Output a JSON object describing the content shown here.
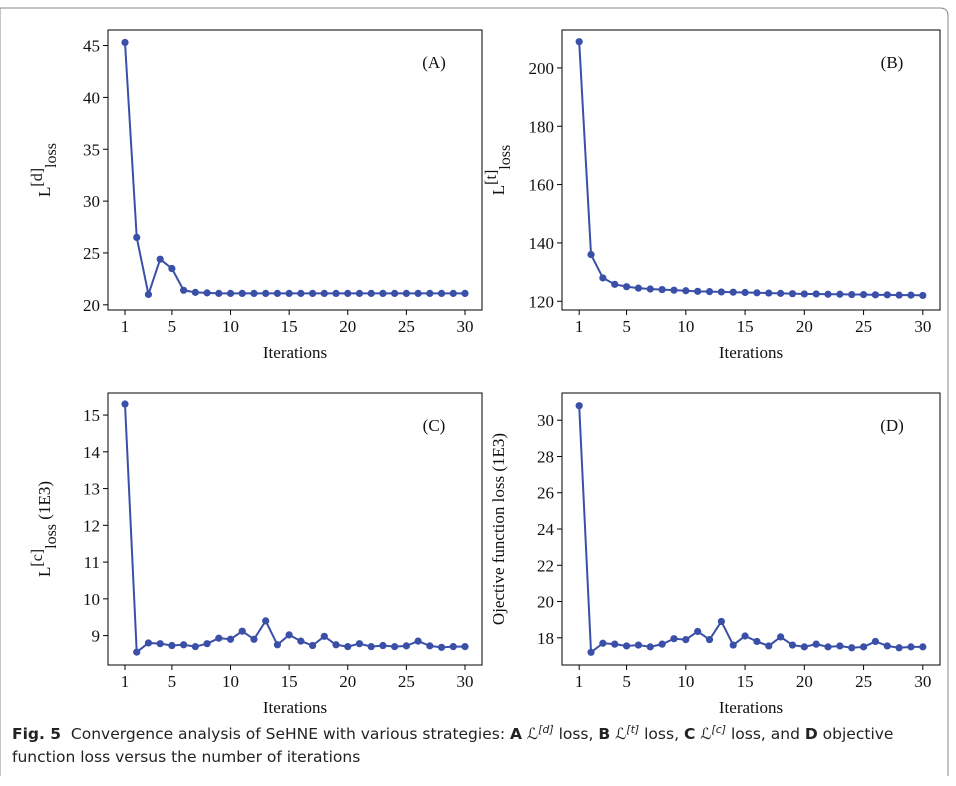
{
  "chart_data": [
    {
      "type": "line",
      "annotation": "(A)",
      "xlabel": "Iterations",
      "ylabel": {
        "base": "L",
        "sup": "[d]",
        "sub": "loss"
      },
      "x": [
        1,
        2,
        3,
        4,
        5,
        6,
        7,
        8,
        9,
        10,
        11,
        12,
        13,
        14,
        15,
        16,
        17,
        18,
        19,
        20,
        21,
        22,
        23,
        24,
        25,
        26,
        27,
        28,
        29,
        30
      ],
      "series": [
        {
          "color": "#3a4fa8",
          "values": [
            45.3,
            26.5,
            21.0,
            24.4,
            23.5,
            21.4,
            21.2,
            21.15,
            21.1,
            21.1,
            21.1,
            21.1,
            21.1,
            21.1,
            21.1,
            21.1,
            21.1,
            21.1,
            21.1,
            21.1,
            21.1,
            21.1,
            21.1,
            21.1,
            21.1,
            21.1,
            21.1,
            21.1,
            21.1,
            21.1
          ]
        }
      ],
      "xlim": [
        -0.45,
        31.45
      ],
      "xticks": [
        1,
        5,
        10,
        15,
        20,
        25,
        30
      ],
      "ylim": [
        19.5,
        46.5
      ],
      "yticks": [
        20,
        25,
        30,
        35,
        40,
        45
      ]
    },
    {
      "type": "line",
      "annotation": "(B)",
      "xlabel": "Iterations",
      "ylabel": {
        "base": "L",
        "sup": "[t]",
        "sub": "loss"
      },
      "x": [
        1,
        2,
        3,
        4,
        5,
        6,
        7,
        8,
        9,
        10,
        11,
        12,
        13,
        14,
        15,
        16,
        17,
        18,
        19,
        20,
        21,
        22,
        23,
        24,
        25,
        26,
        27,
        28,
        29,
        30
      ],
      "series": [
        {
          "color": "#3a4fa8",
          "values": [
            209,
            136,
            128,
            125.8,
            125,
            124.5,
            124.2,
            124,
            123.8,
            123.6,
            123.4,
            123.3,
            123.2,
            123.1,
            123.0,
            122.9,
            122.8,
            122.7,
            122.6,
            122.5,
            122.5,
            122.4,
            122.4,
            122.3,
            122.3,
            122.2,
            122.2,
            122.1,
            122.1,
            122.0
          ]
        }
      ],
      "xlim": [
        -0.45,
        31.45
      ],
      "xticks": [
        1,
        5,
        10,
        15,
        20,
        25,
        30
      ],
      "ylim": [
        117,
        213
      ],
      "yticks": [
        120,
        140,
        160,
        180,
        200
      ]
    },
    {
      "type": "line",
      "annotation": "(C)",
      "xlabel": "Iterations",
      "ylabel": {
        "base": "L",
        "sup": "[c]",
        "sub": "loss",
        "suffix": " (1E3)"
      },
      "x": [
        1,
        2,
        3,
        4,
        5,
        6,
        7,
        8,
        9,
        10,
        11,
        12,
        13,
        14,
        15,
        16,
        17,
        18,
        19,
        20,
        21,
        22,
        23,
        24,
        25,
        26,
        27,
        28,
        29,
        30
      ],
      "series": [
        {
          "color": "#3a4fa8",
          "values": [
            15.3,
            8.55,
            8.8,
            8.78,
            8.73,
            8.75,
            8.7,
            8.78,
            8.93,
            8.9,
            9.12,
            8.9,
            9.4,
            8.75,
            9.02,
            8.85,
            8.73,
            8.98,
            8.75,
            8.7,
            8.78,
            8.7,
            8.73,
            8.7,
            8.72,
            8.85,
            8.72,
            8.68,
            8.7,
            8.7
          ]
        }
      ],
      "xlim": [
        -0.45,
        31.45
      ],
      "xticks": [
        1,
        5,
        10,
        15,
        20,
        25,
        30
      ],
      "ylim": [
        8.2,
        15.6
      ],
      "yticks": [
        9,
        10,
        11,
        12,
        13,
        14,
        15
      ]
    },
    {
      "type": "line",
      "annotation": "(D)",
      "xlabel": "Iterations",
      "ylabel": {
        "base": "Ojective function loss (1E3)"
      },
      "x": [
        1,
        2,
        3,
        4,
        5,
        6,
        7,
        8,
        9,
        10,
        11,
        12,
        13,
        14,
        15,
        16,
        17,
        18,
        19,
        20,
        21,
        22,
        23,
        24,
        25,
        26,
        27,
        28,
        29,
        30
      ],
      "series": [
        {
          "color": "#3a4fa8",
          "values": [
            30.8,
            17.2,
            17.7,
            17.65,
            17.55,
            17.6,
            17.5,
            17.65,
            17.95,
            17.9,
            18.35,
            17.9,
            18.9,
            17.6,
            18.1,
            17.8,
            17.55,
            18.05,
            17.6,
            17.5,
            17.65,
            17.5,
            17.55,
            17.45,
            17.5,
            17.8,
            17.55,
            17.45,
            17.5,
            17.5
          ]
        }
      ],
      "xlim": [
        -0.45,
        31.45
      ],
      "xticks": [
        1,
        5,
        10,
        15,
        20,
        25,
        30
      ],
      "ylim": [
        16.5,
        31.5
      ],
      "yticks": [
        18,
        20,
        22,
        24,
        26,
        28,
        30
      ]
    }
  ],
  "caption": [
    {
      "text": "Fig. 5",
      "style": "bold"
    },
    {
      "text": "  Convergence analysis of SeHNE with various strategies: "
    },
    {
      "text": "A",
      "style": "bold"
    },
    {
      "text": " ℒ"
    },
    {
      "text": "[d]",
      "style": "sup"
    },
    {
      "text": " loss, "
    },
    {
      "text": "B",
      "style": "bold"
    },
    {
      "text": " ℒ"
    },
    {
      "text": "[t]",
      "style": "sup"
    },
    {
      "text": " loss, "
    },
    {
      "text": "C",
      "style": "bold"
    },
    {
      "text": " ℒ"
    },
    {
      "text": "[c]",
      "style": "sup"
    },
    {
      "text": " loss, and "
    },
    {
      "text": "D",
      "style": "bold"
    },
    {
      "text": " objective function loss versus the number of iterations"
    }
  ]
}
